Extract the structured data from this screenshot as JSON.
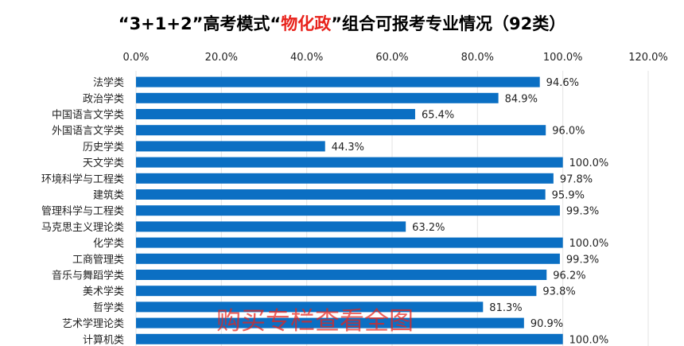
{
  "title": {
    "before": "“3+1+2”高考模式“",
    "highlight": "物化政",
    "after": "”组合可报考专业情况（92类）"
  },
  "watermark": "购买专栏查看全图",
  "colors": {
    "bar": "#0b6fc3",
    "highlight": "#e8221b",
    "grid": "#e3e3e3"
  },
  "chart_data": {
    "type": "bar",
    "orientation": "horizontal",
    "categories": [
      "法学类",
      "政治学类",
      "中国语言文学类",
      "外国语言文学类",
      "历史学类",
      "天文学类",
      "环境科学与工程类",
      "建筑类",
      "管理科学与工程类",
      "马克思主义理论类",
      "化学类",
      "工商管理类",
      "音乐与舞蹈学类",
      "美术学类",
      "哲学类",
      "艺术学理论类",
      "计算机类"
    ],
    "values": [
      94.6,
      84.9,
      65.4,
      96.0,
      44.3,
      100.0,
      97.8,
      95.9,
      99.3,
      63.2,
      100.0,
      99.3,
      96.2,
      93.8,
      81.3,
      90.9,
      100.0
    ],
    "value_labels": [
      "94.6%",
      "84.9%",
      "65.4%",
      "96.0%",
      "44.3%",
      "100.0%",
      "97.8%",
      "95.9%",
      "99.3%",
      "63.2%",
      "100.0%",
      "99.3%",
      "96.2%",
      "93.8%",
      "81.3%",
      "90.9%",
      "100.0%"
    ],
    "xlim": [
      0,
      120
    ],
    "xticks": [
      0,
      20,
      40,
      60,
      80,
      100,
      120
    ],
    "xtick_labels": [
      "0.0%",
      "20.0%",
      "40.0%",
      "60.0%",
      "80.0%",
      "100.0%",
      "120.0%"
    ],
    "x_axis_position": "top",
    "grid": true,
    "legend": "none"
  }
}
